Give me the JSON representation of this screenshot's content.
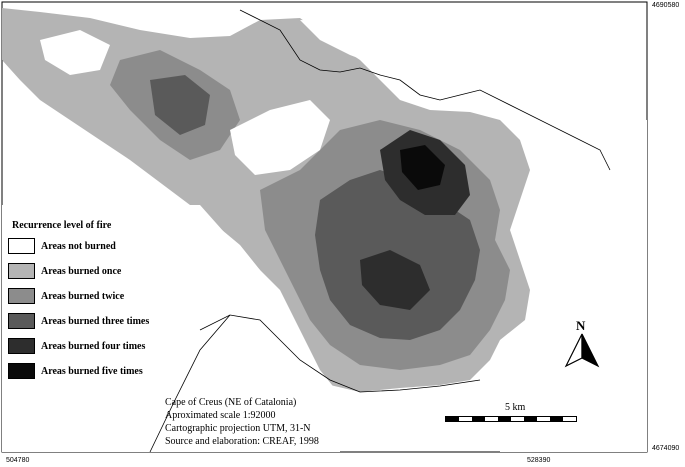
{
  "coordinates": {
    "top_right": "4690580",
    "bottom_right": "4674090",
    "bottom_left": "504780",
    "bottom_mid": "528390"
  },
  "legend": {
    "title": "Recurrence level of fire",
    "items": [
      {
        "label": "Areas not burned",
        "color": "#ffffff"
      },
      {
        "label": "Areas burned once",
        "color": "#b4b4b4"
      },
      {
        "label": "Areas burned twice",
        "color": "#8c8c8c"
      },
      {
        "label": "Areas burned three times",
        "color": "#5a5a5a"
      },
      {
        "label": "Areas burned four times",
        "color": "#2d2d2d"
      },
      {
        "label": "Areas burned five times",
        "color": "#0a0a0a"
      }
    ]
  },
  "credits": {
    "lines": [
      "Cape of Creus (NE of Catalonia)",
      "Aproximated scale 1:92000",
      "Cartographic projection UTM, 31-N",
      "Source and elaboration: CREAF, 1998"
    ]
  },
  "scale_bar": {
    "label": "5 km"
  },
  "north_arrow": {
    "label": "N"
  }
}
